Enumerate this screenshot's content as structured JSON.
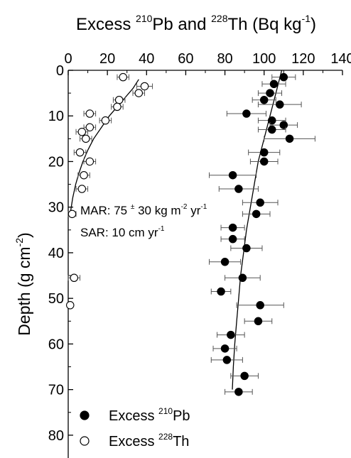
{
  "chart_data": {
    "type": "scatter",
    "title": "",
    "xlabel_parts": [
      "Excess ",
      "210",
      "Pb and ",
      "228",
      "Th (Bq kg",
      "-1",
      ")"
    ],
    "ylabel_parts": [
      "Depth (g cm",
      "-2",
      ")"
    ],
    "x_axis_position": "top",
    "y_inverted": true,
    "xlim": [
      0,
      140
    ],
    "ylim": [
      0,
      85
    ],
    "x_ticks": [
      0,
      20,
      40,
      60,
      80,
      100,
      120,
      140
    ],
    "y_ticks": [
      0,
      10,
      20,
      30,
      40,
      50,
      60,
      70,
      80
    ],
    "grid": false,
    "legend_position": "bottom-left",
    "annotations": [
      [
        "MAR: 75 ",
        "±",
        " 30 kg m",
        "-2",
        " yr",
        "-1"
      ],
      [
        "SAR: 10 cm yr",
        "-1"
      ]
    ],
    "series": [
      {
        "name_parts": [
          "Excess ",
          "210",
          "Pb"
        ],
        "marker": "filled-circle",
        "color": "#000000",
        "points": [
          {
            "x": 110,
            "y": 1.5,
            "err": 6
          },
          {
            "x": 105,
            "y": 3.0,
            "err": 6
          },
          {
            "x": 103,
            "y": 5.0,
            "err": 6
          },
          {
            "x": 100,
            "y": 6.5,
            "err": 6
          },
          {
            "x": 108,
            "y": 7.5,
            "err": 11
          },
          {
            "x": 91,
            "y": 9.5,
            "err": 10
          },
          {
            "x": 104,
            "y": 11.0,
            "err": 7
          },
          {
            "x": 110,
            "y": 12.0,
            "err": 7
          },
          {
            "x": 104,
            "y": 13.0,
            "err": 7
          },
          {
            "x": 113,
            "y": 15.0,
            "err": 13
          },
          {
            "x": 100,
            "y": 18.0,
            "err": 8
          },
          {
            "x": 100,
            "y": 20.0,
            "err": 7
          },
          {
            "x": 84,
            "y": 23.0,
            "err": 12
          },
          {
            "x": 87,
            "y": 26.0,
            "err": 10
          },
          {
            "x": 98,
            "y": 29.0,
            "err": 9
          },
          {
            "x": 96,
            "y": 31.5,
            "err": 7
          },
          {
            "x": 84,
            "y": 34.5,
            "err": 6
          },
          {
            "x": 84,
            "y": 37.0,
            "err": 6
          },
          {
            "x": 91,
            "y": 39.0,
            "err": 8
          },
          {
            "x": 80,
            "y": 42.0,
            "err": 8
          },
          {
            "x": 89,
            "y": 45.5,
            "err": 9
          },
          {
            "x": 78,
            "y": 48.5,
            "err": 5
          },
          {
            "x": 98,
            "y": 51.5,
            "err": 12
          },
          {
            "x": 97,
            "y": 55.0,
            "err": 7
          },
          {
            "x": 83,
            "y": 58.0,
            "err": 7
          },
          {
            "x": 80,
            "y": 61.0,
            "err": 6
          },
          {
            "x": 81,
            "y": 63.5,
            "err": 8
          },
          {
            "x": 90,
            "y": 67.0,
            "err": 7
          },
          {
            "x": 87,
            "y": 70.5,
            "err": 7
          }
        ],
        "fit": [
          [
            109,
            0
          ],
          [
            106,
            5
          ],
          [
            103,
            10
          ],
          [
            100,
            15
          ],
          [
            97,
            20
          ],
          [
            95,
            25
          ],
          [
            93,
            30
          ],
          [
            91,
            35
          ],
          [
            89.5,
            40
          ],
          [
            88,
            45
          ],
          [
            87,
            50
          ],
          [
            86,
            55
          ],
          [
            85,
            60
          ],
          [
            84.3,
            65
          ],
          [
            83.8,
            70
          ]
        ]
      },
      {
        "name_parts": [
          "Excess ",
          "228",
          "Th"
        ],
        "marker": "open-circle",
        "color": "#000000",
        "points": [
          {
            "x": 28,
            "y": 1.5,
            "err": 3
          },
          {
            "x": 39,
            "y": 3.5,
            "err": 4
          },
          {
            "x": 36,
            "y": 5.0,
            "err": 3
          },
          {
            "x": 26,
            "y": 6.5,
            "err": 3
          },
          {
            "x": 25,
            "y": 8.0,
            "err": 3
          },
          {
            "x": 11,
            "y": 9.5,
            "err": 3
          },
          {
            "x": 19,
            "y": 11.0,
            "err": 3
          },
          {
            "x": 11,
            "y": 12.5,
            "err": 3
          },
          {
            "x": 7,
            "y": 13.5,
            "err": 3
          },
          {
            "x": 9,
            "y": 15.0,
            "err": 3
          },
          {
            "x": 6,
            "y": 18.0,
            "err": 3
          },
          {
            "x": 11,
            "y": 20.0,
            "err": 3
          },
          {
            "x": 8,
            "y": 23.0,
            "err": 3
          },
          {
            "x": 7,
            "y": 26.0,
            "err": 3
          },
          {
            "x": 2,
            "y": 31.5,
            "err": 2
          },
          {
            "x": 3,
            "y": 45.5,
            "err": 3
          },
          {
            "x": 1,
            "y": 51.5,
            "err": 1
          }
        ],
        "fit": [
          [
            36,
            2
          ],
          [
            33,
            4
          ],
          [
            29,
            6
          ],
          [
            25,
            8
          ],
          [
            21,
            10
          ],
          [
            17,
            12.5
          ],
          [
            13,
            15
          ],
          [
            10,
            17.5
          ],
          [
            7.5,
            20
          ],
          [
            5.5,
            22.5
          ],
          [
            3.8,
            25
          ],
          [
            2.3,
            28
          ],
          [
            1.2,
            31
          ]
        ]
      }
    ]
  }
}
